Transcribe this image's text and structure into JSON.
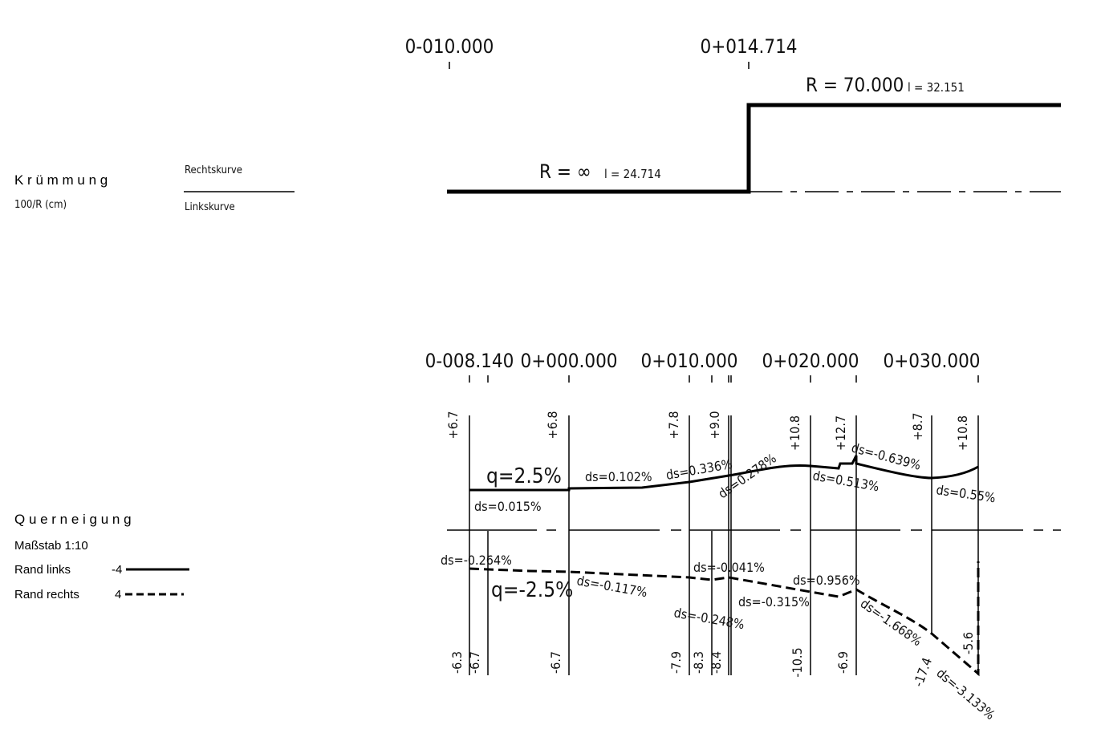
{
  "kruemmung": {
    "title": "K r ü m m u n g",
    "subtitle": "100/R (cm)",
    "rechts_label": "Rechtskurve",
    "links_label": "Linkskurve",
    "stations": [
      "0-010.000",
      "0+014.714"
    ],
    "segment1": {
      "radius": "R = ∞",
      "length": "l = 24.714"
    },
    "segment2": {
      "radius": "R = 70.000",
      "length": "l = 32.151"
    }
  },
  "querneigung": {
    "title": "Q u e r n e i g u n g",
    "scale": "Maßstab 1:10",
    "legend": [
      {
        "label": "Rand links",
        "value": "-4",
        "style": "solid"
      },
      {
        "label": "Rand rechts",
        "value": "4",
        "style": "dashed"
      }
    ],
    "stations": [
      "0-008.140",
      "0+000.000",
      "0+010.000",
      "0+020.000",
      "0+030.000"
    ],
    "upper_values": [
      "+6.7",
      "+6.8",
      "+7.8",
      "+9.0",
      "+10.8",
      "+12.7",
      "+8.7",
      "+10.8"
    ],
    "lower_values": [
      "-6.3",
      "-6.7",
      "-6.7",
      "-7.9",
      "-8.3",
      "-8.4",
      "-10.5",
      "-6.9",
      "-17.4",
      "-5.6"
    ],
    "upper_labels": {
      "q": "q=2.5%",
      "ds1": "ds=0.015%",
      "ds2": "ds=0.102%",
      "ds3": "ds=0.336%",
      "ds4": "ds=0.278%",
      "ds5": "ds=0.513%",
      "ds6": "ds=-0.639%",
      "ds7": "ds=0.55%"
    },
    "lower_labels": {
      "q": "q=-2.5%",
      "ds1": "ds=-0.264%",
      "ds2": "ds=-0.117%",
      "ds3": "ds=-0.041%",
      "ds4": "ds=-0.248%",
      "ds5": "ds=-0.315%",
      "ds6": "ds=0.956%",
      "ds7": "ds=-1.668%",
      "ds8": "ds=-3.133%"
    }
  }
}
